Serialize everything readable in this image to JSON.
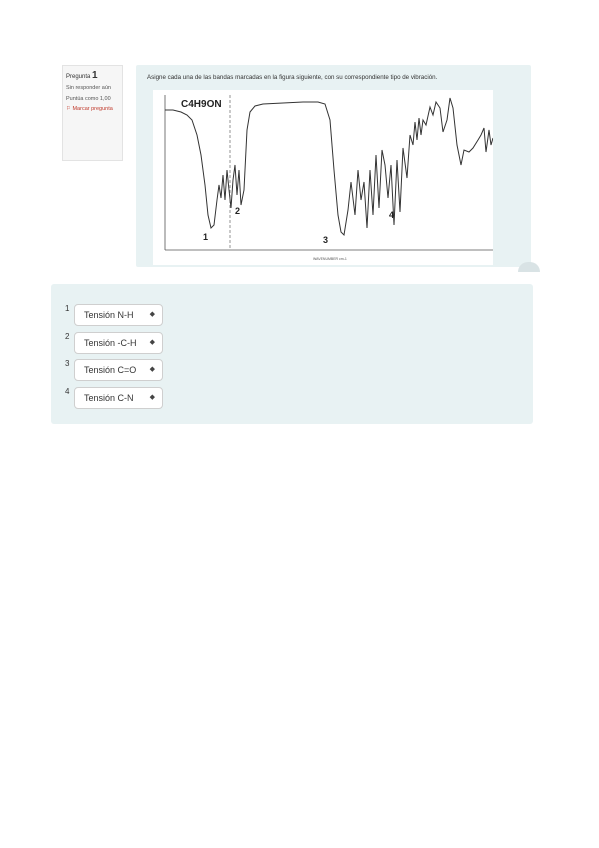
{
  "question_info": {
    "label": "Pregunta",
    "number": "1",
    "status": "Sin responder aún",
    "points": "Puntúa como 1,00",
    "flag": "Marcar pregunta"
  },
  "question": {
    "prompt": "Asigne cada una de las bandas marcadas en la figura siguiente, con su correspondiente tipo de vibración.",
    "spectrum": {
      "formula": "C4H9ON",
      "band_labels": [
        "1",
        "2",
        "3",
        "4"
      ],
      "axis_label": "WAVENUMBER cm-1"
    }
  },
  "answers": [
    {
      "number": "1",
      "selected": "Tensión N-H"
    },
    {
      "number": "2",
      "selected": "Tensión -C-H"
    },
    {
      "number": "3",
      "selected": "Tensión C=O"
    },
    {
      "number": "4",
      "selected": "Tensión C-N"
    }
  ]
}
